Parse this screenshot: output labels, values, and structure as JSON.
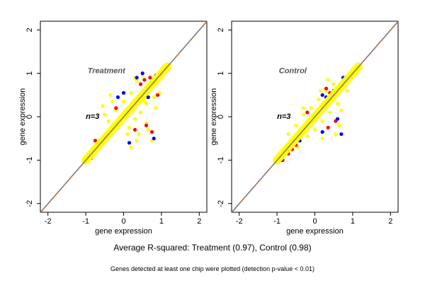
{
  "chart_data": [
    {
      "type": "scatter",
      "panel_label": "Treatment",
      "sample_label": "n=3",
      "xlabel": "gene expression",
      "ylabel": "gene expression",
      "xlim": [
        -2.2,
        2.2
      ],
      "ylim": [
        -2.2,
        2.2
      ],
      "x_ticks": [
        "-2",
        "-1",
        "0",
        "1",
        "2"
      ],
      "y_ticks": [
        "-2",
        "-1",
        "0",
        "1",
        "2"
      ],
      "grid": false,
      "diagonal_line": {
        "x": [
          -2.2,
          2.2
        ],
        "y": [
          -2.2,
          2.2
        ],
        "colors": [
          "#3355cc",
          "#cc8833"
        ]
      },
      "series": [
        {
          "color": "#ffff00",
          "points": [
            [
              -1.0,
              -1.02
            ],
            [
              -0.9,
              -0.85
            ],
            [
              -0.8,
              -0.75
            ],
            [
              -0.7,
              -0.6
            ],
            [
              -0.6,
              -0.55
            ],
            [
              -0.5,
              -0.45
            ],
            [
              -0.4,
              -0.38
            ],
            [
              -0.3,
              -0.2
            ],
            [
              -0.2,
              -0.25
            ],
            [
              -0.1,
              -0.05
            ],
            [
              0.0,
              0.02
            ],
            [
              0.1,
              0.05
            ],
            [
              0.2,
              0.22
            ],
            [
              0.3,
              0.3
            ],
            [
              0.4,
              0.45
            ],
            [
              0.5,
              0.48
            ],
            [
              0.6,
              0.62
            ],
            [
              0.7,
              0.7
            ],
            [
              0.8,
              0.78
            ],
            [
              0.9,
              0.9
            ],
            [
              1.0,
              0.98
            ],
            [
              1.1,
              1.08
            ],
            [
              1.2,
              1.2
            ],
            [
              -0.4,
              -0.1
            ],
            [
              -0.2,
              0.15
            ],
            [
              0.0,
              0.35
            ],
            [
              0.2,
              0.55
            ],
            [
              0.35,
              0.82
            ],
            [
              0.5,
              0.95
            ],
            [
              -0.5,
              0.05
            ],
            [
              -0.3,
              0.35
            ],
            [
              0.15,
              -0.25
            ],
            [
              0.3,
              -0.05
            ],
            [
              0.45,
              0.1
            ],
            [
              0.6,
              0.3
            ],
            [
              0.8,
              0.45
            ],
            [
              0.1,
              -0.4
            ],
            [
              0.35,
              -0.55
            ],
            [
              0.6,
              -0.15
            ],
            [
              0.85,
              0.2
            ],
            [
              0.65,
              -0.3
            ],
            [
              0.75,
              -0.55
            ],
            [
              0.2,
              -0.7
            ],
            [
              -0.55,
              0.25
            ],
            [
              -0.35,
              0.5
            ],
            [
              0.3,
              0.9
            ],
            [
              0.55,
              0.35
            ],
            [
              0.95,
              0.55
            ],
            [
              0.4,
              -0.4
            ],
            [
              0.1,
              0.15
            ]
          ]
        },
        {
          "color": "#ff0000",
          "points": [
            [
              -0.85,
              -0.95
            ],
            [
              -0.65,
              -0.7
            ],
            [
              0.45,
              0.75
            ],
            [
              0.55,
              0.85
            ],
            [
              0.7,
              0.9
            ],
            [
              0.85,
              0.95
            ],
            [
              0.9,
              0.5
            ],
            [
              0.6,
              -0.2
            ],
            [
              0.75,
              -0.35
            ],
            [
              -0.2,
              0.2
            ],
            [
              0.3,
              -0.3
            ],
            [
              -0.75,
              -0.55
            ]
          ]
        },
        {
          "color": "#0000ff",
          "points": [
            [
              -0.75,
              -0.82
            ],
            [
              -0.6,
              -0.65
            ],
            [
              -0.15,
              0.45
            ],
            [
              0.0,
              0.55
            ],
            [
              0.35,
              0.9
            ],
            [
              0.5,
              1.0
            ],
            [
              0.85,
              0.95
            ],
            [
              0.95,
              1.0
            ],
            [
              0.6,
              0.6
            ],
            [
              0.65,
              0.45
            ],
            [
              0.15,
              -0.6
            ],
            [
              0.8,
              -0.5
            ]
          ]
        }
      ]
    },
    {
      "type": "scatter",
      "panel_label": "Control",
      "sample_label": "n=3",
      "xlabel": "gene expression",
      "ylabel": "gene expression",
      "xlim": [
        -2.2,
        2.2
      ],
      "ylim": [
        -2.2,
        2.2
      ],
      "x_ticks": [
        "-2",
        "-1",
        "0",
        "1",
        "2"
      ],
      "y_ticks": [
        "-2",
        "-1",
        "0",
        "1",
        "2"
      ],
      "grid": false,
      "diagonal_line": {
        "x": [
          -2.2,
          2.2
        ],
        "y": [
          -2.2,
          2.2
        ],
        "colors": [
          "#3355cc",
          "#cc8833"
        ]
      },
      "series": [
        {
          "color": "#ffff00",
          "points": [
            [
              -1.05,
              -1.05
            ],
            [
              -0.9,
              -0.88
            ],
            [
              -0.8,
              -0.78
            ],
            [
              -0.7,
              -0.65
            ],
            [
              -0.6,
              -0.6
            ],
            [
              -0.5,
              -0.48
            ],
            [
              -0.4,
              -0.4
            ],
            [
              -0.3,
              -0.28
            ],
            [
              -0.2,
              -0.22
            ],
            [
              -0.1,
              -0.08
            ],
            [
              0.0,
              0.0
            ],
            [
              0.1,
              0.12
            ],
            [
              0.2,
              0.18
            ],
            [
              0.3,
              0.3
            ],
            [
              0.4,
              0.38
            ],
            [
              0.5,
              0.52
            ],
            [
              0.6,
              0.6
            ],
            [
              0.7,
              0.68
            ],
            [
              0.8,
              0.8
            ],
            [
              0.9,
              0.88
            ],
            [
              1.0,
              1.0
            ],
            [
              1.1,
              1.08
            ],
            [
              1.2,
              1.15
            ],
            [
              -0.5,
              -0.2
            ],
            [
              -0.3,
              0.05
            ],
            [
              -0.1,
              0.2
            ],
            [
              0.1,
              0.4
            ],
            [
              0.3,
              0.6
            ],
            [
              0.5,
              0.75
            ],
            [
              0.0,
              -0.3
            ],
            [
              0.2,
              -0.1
            ],
            [
              0.4,
              0.1
            ],
            [
              0.6,
              0.3
            ],
            [
              0.2,
              -0.5
            ],
            [
              0.55,
              -0.4
            ],
            [
              0.7,
              0.15
            ],
            [
              0.85,
              0.6
            ],
            [
              -0.7,
              -0.4
            ],
            [
              -0.45,
              -0.7
            ],
            [
              -0.2,
              -0.45
            ],
            [
              0.35,
              0.85
            ],
            [
              0.15,
              0.6
            ],
            [
              -0.3,
              0.2
            ],
            [
              0.05,
              0.05
            ],
            [
              0.65,
              -0.2
            ]
          ]
        },
        {
          "color": "#ff0000",
          "points": [
            [
              -0.95,
              -0.95
            ],
            [
              -0.85,
              -1.0
            ],
            [
              -0.7,
              -0.85
            ],
            [
              -0.6,
              -0.75
            ],
            [
              -0.5,
              -0.65
            ],
            [
              0.3,
              0.65
            ],
            [
              0.4,
              0.55
            ],
            [
              0.55,
              -0.1
            ],
            [
              0.35,
              -0.25
            ],
            [
              -0.2,
              0.1
            ]
          ]
        },
        {
          "color": "#0000ff",
          "points": [
            [
              -0.9,
              -1.0
            ],
            [
              0.2,
              0.5
            ],
            [
              0.3,
              0.45
            ],
            [
              0.5,
              0.6
            ],
            [
              0.6,
              -0.05
            ],
            [
              0.75,
              0.9
            ],
            [
              0.85,
              0.85
            ],
            [
              0.2,
              -0.35
            ],
            [
              -0.4,
              -0.55
            ],
            [
              0.7,
              -0.4
            ]
          ]
        }
      ]
    }
  ],
  "caption_main": "Average R-squared: Treatment (0.97), Control (0.98)",
  "caption_sub": "Genes detected at least one chip were plotted (detection p-value < 0.01)"
}
